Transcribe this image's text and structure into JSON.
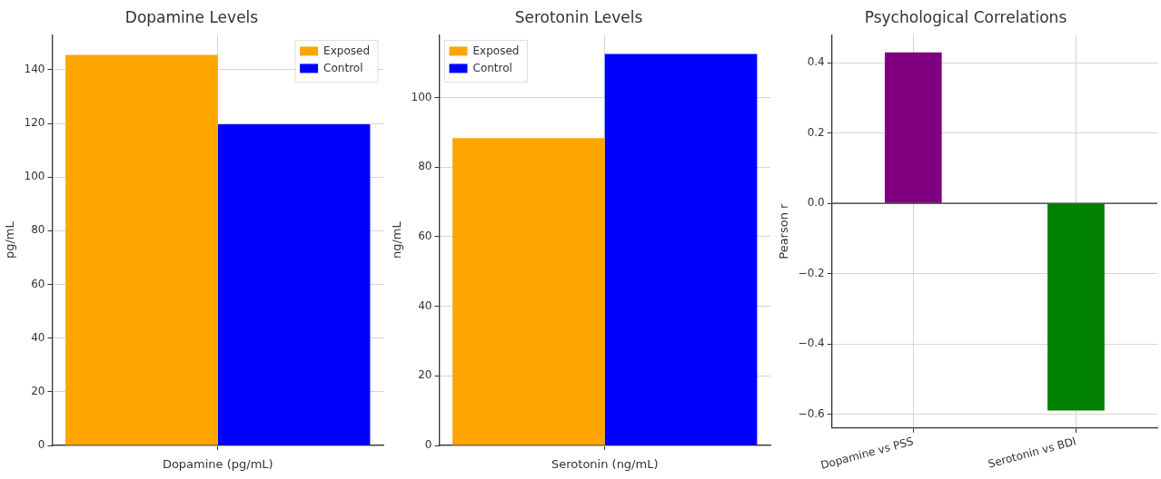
{
  "chart_data": [
    {
      "type": "bar",
      "title": "Dopamine Levels",
      "xlabel": "Dopamine (pg/mL)",
      "ylabel": "pg/mL",
      "categories": [
        null
      ],
      "series": [
        {
          "name": "Exposed",
          "color": "#ffa500",
          "values": [
            145.5
          ]
        },
        {
          "name": "Control",
          "color": "#0000ff",
          "values": [
            119.7
          ]
        }
      ],
      "ylim": [
        0,
        153
      ],
      "yticks": [
        0,
        20,
        40,
        60,
        80,
        100,
        120,
        140
      ],
      "grid": true,
      "legend": "top right"
    },
    {
      "type": "bar",
      "title": "Serotonin Levels",
      "xlabel": "Serotonin (ng/mL)",
      "ylabel": "ng/mL",
      "categories": [
        null
      ],
      "series": [
        {
          "name": "Exposed",
          "color": "#ffa500",
          "values": [
            88.3
          ]
        },
        {
          "name": "Control",
          "color": "#0000ff",
          "values": [
            112.5
          ]
        }
      ],
      "ylim": [
        0,
        118
      ],
      "yticks": [
        0,
        20,
        40,
        60,
        80,
        100
      ],
      "grid": true,
      "legend": "top left"
    },
    {
      "type": "bar",
      "title": "Psychological Correlations",
      "ylabel": "Pearson r",
      "categories": [
        "Dopamine vs PSS",
        "Serotonin vs BDI"
      ],
      "values": [
        0.43,
        -0.59
      ],
      "colors": [
        "#800080",
        "#008000"
      ],
      "ylim": [
        -0.64,
        0.48
      ],
      "yticks": [
        {
          "value": -0.6,
          "label": "−0.6"
        },
        {
          "value": -0.4,
          "label": "−0.4"
        },
        {
          "value": -0.2,
          "label": "−0.2"
        },
        {
          "value": 0,
          "label": "0.0"
        },
        {
          "value": 0.2,
          "label": "0.2"
        },
        {
          "value": 0.4,
          "label": "0.4"
        }
      ],
      "ref_lines": [
        {
          "axis": "y",
          "value": 0,
          "color": "#333333"
        }
      ],
      "grid": true
    }
  ]
}
